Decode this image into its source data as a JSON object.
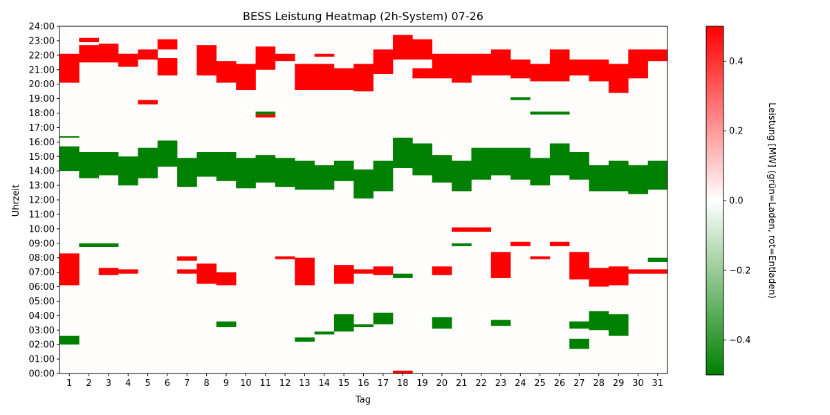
{
  "chart_data": {
    "type": "heatmap",
    "title": "BESS Leistung Heatmap (2h-System) 07-26",
    "xlabel": "Tag",
    "ylabel": "Uhrzeit",
    "colorbar_label": "Leistung [MW] (grün=Laden, rot=Entladen)",
    "x_ticks": [
      "1",
      "2",
      "3",
      "4",
      "5",
      "6",
      "7",
      "8",
      "9",
      "10",
      "11",
      "12",
      "13",
      "14",
      "15",
      "16",
      "17",
      "18",
      "19",
      "20",
      "21",
      "22",
      "23",
      "24",
      "25",
      "26",
      "27",
      "28",
      "29",
      "30",
      "31"
    ],
    "y_ticks": [
      "00:00",
      "01:00",
      "02:00",
      "03:00",
      "04:00",
      "05:00",
      "06:00",
      "07:00",
      "08:00",
      "09:00",
      "10:00",
      "11:00",
      "12:00",
      "13:00",
      "14:00",
      "15:00",
      "16:00",
      "17:00",
      "18:00",
      "19:00",
      "20:00",
      "21:00",
      "22:00",
      "23:00",
      "24:00"
    ],
    "colorbar_ticks": [
      {
        "value": 0.4,
        "label": "0.4"
      },
      {
        "value": 0.2,
        "label": "0.2"
      },
      {
        "value": 0.0,
        "label": "0.0"
      },
      {
        "value": -0.2,
        "label": "−0.2"
      },
      {
        "value": -0.4,
        "label": "−0.4"
      }
    ],
    "zlim": [
      -0.5,
      0.5
    ],
    "colors": {
      "charge": "#008000",
      "idle": "#ffffff",
      "discharge": "#ff0000"
    },
    "days": [
      {
        "day": 1,
        "charge": [
          [
            2.0,
            2.6,
            -0.5
          ],
          [
            14.0,
            15.7,
            -0.5
          ],
          [
            16.3,
            16.4,
            -0.5
          ]
        ],
        "discharge": [
          [
            6.1,
            8.3,
            0.5
          ],
          [
            20.1,
            22.1,
            0.5
          ]
        ]
      },
      {
        "day": 2,
        "charge": [
          [
            13.5,
            15.3,
            -0.5
          ],
          [
            8.75,
            9.0,
            -0.5
          ]
        ],
        "discharge": [
          [
            21.5,
            22.7,
            0.5
          ],
          [
            22.9,
            23.2,
            0.5
          ]
        ]
      },
      {
        "day": 3,
        "charge": [
          [
            13.7,
            15.3,
            -0.5
          ],
          [
            8.75,
            9.0,
            -0.5
          ]
        ],
        "discharge": [
          [
            6.8,
            7.3,
            0.5
          ],
          [
            21.5,
            22.8,
            0.5
          ]
        ]
      },
      {
        "day": 4,
        "charge": [
          [
            13.0,
            15.0,
            -0.5
          ]
        ],
        "discharge": [
          [
            21.2,
            22.1,
            0.5
          ],
          [
            6.9,
            7.2,
            0.5
          ]
        ]
      },
      {
        "day": 5,
        "charge": [
          [
            13.5,
            15.6,
            -0.5
          ]
        ],
        "discharge": [
          [
            21.7,
            22.4,
            0.5
          ],
          [
            18.6,
            18.9,
            0.5
          ]
        ]
      },
      {
        "day": 6,
        "charge": [
          [
            14.3,
            16.1,
            -0.5
          ]
        ],
        "discharge": [
          [
            20.6,
            21.8,
            0.5
          ],
          [
            22.4,
            23.1,
            0.5
          ]
        ]
      },
      {
        "day": 7,
        "charge": [
          [
            12.9,
            14.9,
            -0.5
          ]
        ],
        "discharge": [
          [
            6.9,
            7.2,
            0.5
          ],
          [
            7.8,
            8.1,
            0.5
          ]
        ]
      },
      {
        "day": 8,
        "charge": [
          [
            13.6,
            15.3,
            -0.5
          ]
        ],
        "discharge": [
          [
            6.2,
            7.6,
            0.5
          ],
          [
            20.6,
            22.7,
            0.5
          ]
        ]
      },
      {
        "day": 9,
        "charge": [
          [
            13.3,
            15.3,
            -0.5
          ],
          [
            3.2,
            3.6,
            -0.5
          ]
        ],
        "discharge": [
          [
            6.1,
            7.0,
            0.5
          ],
          [
            20.1,
            21.6,
            0.5
          ]
        ]
      },
      {
        "day": 10,
        "charge": [
          [
            12.8,
            14.9,
            -0.5
          ]
        ],
        "discharge": [
          [
            19.6,
            21.4,
            0.5
          ]
        ]
      },
      {
        "day": 11,
        "charge": [
          [
            13.2,
            15.1,
            -0.5
          ],
          [
            17.9,
            18.1,
            -0.5
          ]
        ],
        "discharge": [
          [
            21.0,
            22.6,
            0.5
          ],
          [
            17.7,
            17.9,
            0.5
          ]
        ]
      },
      {
        "day": 12,
        "charge": [
          [
            12.9,
            14.9,
            -0.5
          ]
        ],
        "discharge": [
          [
            21.6,
            22.1,
            0.5
          ],
          [
            7.9,
            8.1,
            0.5
          ]
        ]
      },
      {
        "day": 13,
        "charge": [
          [
            12.7,
            14.7,
            -0.5
          ],
          [
            2.2,
            2.5,
            -0.5
          ]
        ],
        "discharge": [
          [
            6.1,
            8.0,
            0.5
          ],
          [
            19.6,
            21.4,
            0.5
          ]
        ]
      },
      {
        "day": 14,
        "charge": [
          [
            12.7,
            14.4,
            -0.5
          ],
          [
            2.7,
            2.9,
            -0.5
          ]
        ],
        "discharge": [
          [
            19.6,
            21.4,
            0.5
          ],
          [
            21.9,
            22.1,
            0.5
          ]
        ]
      },
      {
        "day": 15,
        "charge": [
          [
            13.3,
            14.7,
            -0.5
          ],
          [
            2.9,
            4.1,
            -0.5
          ]
        ],
        "discharge": [
          [
            19.6,
            21.1,
            0.5
          ],
          [
            6.2,
            7.5,
            0.5
          ]
        ]
      },
      {
        "day": 16,
        "charge": [
          [
            12.1,
            14.1,
            -0.5
          ],
          [
            3.2,
            3.4,
            -0.5
          ]
        ],
        "discharge": [
          [
            19.5,
            21.4,
            0.5
          ],
          [
            6.9,
            7.2,
            0.5
          ]
        ]
      },
      {
        "day": 17,
        "charge": [
          [
            12.6,
            14.7,
            -0.5
          ],
          [
            3.4,
            4.2,
            -0.5
          ]
        ],
        "discharge": [
          [
            20.7,
            22.4,
            0.5
          ],
          [
            6.8,
            7.4,
            0.5
          ]
        ]
      },
      {
        "day": 18,
        "charge": [
          [
            14.2,
            16.3,
            -0.5
          ],
          [
            6.6,
            6.9,
            -0.5
          ]
        ],
        "discharge": [
          [
            21.7,
            23.4,
            0.5
          ],
          [
            0.0,
            0.2,
            0.5
          ]
        ]
      },
      {
        "day": 19,
        "charge": [
          [
            13.7,
            15.9,
            -0.5
          ]
        ],
        "discharge": [
          [
            20.4,
            21.1,
            0.5
          ],
          [
            21.7,
            23.1,
            0.5
          ]
        ]
      },
      {
        "day": 20,
        "charge": [
          [
            13.2,
            15.1,
            -0.5
          ],
          [
            3.1,
            3.9,
            -0.5
          ]
        ],
        "discharge": [
          [
            20.4,
            22.1,
            0.5
          ],
          [
            6.8,
            7.4,
            0.5
          ]
        ]
      },
      {
        "day": 21,
        "charge": [
          [
            12.6,
            14.7,
            -0.5
          ],
          [
            8.8,
            9.0,
            -0.5
          ]
        ],
        "discharge": [
          [
            20.1,
            22.1,
            0.5
          ],
          [
            9.8,
            10.1,
            0.5
          ]
        ]
      },
      {
        "day": 22,
        "charge": [
          [
            13.4,
            15.6,
            -0.5
          ]
        ],
        "discharge": [
          [
            20.6,
            22.1,
            0.5
          ],
          [
            9.8,
            10.1,
            0.5
          ]
        ]
      },
      {
        "day": 23,
        "charge": [
          [
            13.7,
            15.6,
            -0.5
          ],
          [
            3.3,
            3.7,
            -0.5
          ]
        ],
        "discharge": [
          [
            6.6,
            8.4,
            0.5
          ],
          [
            20.6,
            22.4,
            0.5
          ]
        ]
      },
      {
        "day": 24,
        "charge": [
          [
            13.4,
            15.6,
            -0.5
          ],
          [
            18.9,
            19.1,
            -0.5
          ]
        ],
        "discharge": [
          [
            20.4,
            21.7,
            0.5
          ],
          [
            8.8,
            9.1,
            0.5
          ]
        ]
      },
      {
        "day": 25,
        "charge": [
          [
            13.0,
            14.9,
            -0.5
          ],
          [
            17.9,
            18.1,
            -0.5
          ]
        ],
        "discharge": [
          [
            20.2,
            21.4,
            0.5
          ],
          [
            7.9,
            8.1,
            0.5
          ]
        ]
      },
      {
        "day": 26,
        "charge": [
          [
            13.7,
            15.9,
            -0.5
          ],
          [
            17.9,
            18.1,
            -0.5
          ]
        ],
        "discharge": [
          [
            20.2,
            22.4,
            0.5
          ],
          [
            8.8,
            9.1,
            0.5
          ]
        ]
      },
      {
        "day": 27,
        "charge": [
          [
            13.4,
            15.3,
            -0.5
          ],
          [
            1.7,
            2.4,
            -0.5
          ],
          [
            3.1,
            3.6,
            -0.5
          ]
        ],
        "discharge": [
          [
            6.5,
            8.4,
            0.5
          ],
          [
            20.6,
            21.7,
            0.5
          ]
        ]
      },
      {
        "day": 28,
        "charge": [
          [
            12.6,
            14.4,
            -0.5
          ],
          [
            3.0,
            4.3,
            -0.5
          ]
        ],
        "discharge": [
          [
            6.0,
            7.3,
            0.5
          ],
          [
            20.2,
            21.7,
            0.5
          ]
        ]
      },
      {
        "day": 29,
        "charge": [
          [
            12.6,
            14.7,
            -0.5
          ],
          [
            2.6,
            4.1,
            -0.5
          ]
        ],
        "discharge": [
          [
            6.1,
            7.4,
            0.5
          ],
          [
            19.4,
            21.4,
            0.5
          ]
        ]
      },
      {
        "day": 30,
        "charge": [
          [
            12.4,
            14.4,
            -0.5
          ]
        ],
        "discharge": [
          [
            20.4,
            22.4,
            0.5
          ],
          [
            6.9,
            7.2,
            0.5
          ]
        ]
      },
      {
        "day": 31,
        "charge": [
          [
            12.7,
            14.7,
            -0.5
          ],
          [
            7.7,
            8.0,
            -0.5
          ]
        ],
        "discharge": [
          [
            21.6,
            22.4,
            0.5
          ],
          [
            6.9,
            7.2,
            0.5
          ]
        ]
      }
    ]
  }
}
